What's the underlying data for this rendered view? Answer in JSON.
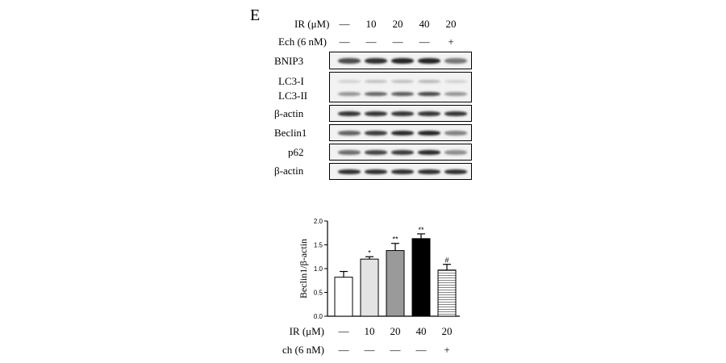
{
  "panel_label": "E",
  "conditions": [
    {
      "name": "IR (μM)",
      "values": [
        "—",
        "10",
        "20",
        "40",
        "20"
      ]
    },
    {
      "name": "Ech (6 nM)",
      "values": [
        "—",
        "—",
        "—",
        "—",
        "+"
      ]
    }
  ],
  "blots": [
    {
      "labels": [
        "BNIP3"
      ],
      "intensity": [
        0.75,
        0.88,
        0.92,
        0.92,
        0.55
      ]
    },
    {
      "labels": [
        "LC3-I",
        "LC3-II"
      ],
      "intensity": [
        0.45,
        0.7,
        0.75,
        0.85,
        0.45
      ]
    },
    {
      "labels": [
        "β-actin"
      ],
      "intensity": [
        0.85,
        0.85,
        0.85,
        0.85,
        0.85
      ]
    },
    {
      "labels": [
        "Beclin1"
      ],
      "intensity": [
        0.65,
        0.82,
        0.9,
        0.92,
        0.5
      ]
    },
    {
      "labels": [
        "p62"
      ],
      "intensity": [
        0.6,
        0.78,
        0.82,
        0.9,
        0.45
      ]
    },
    {
      "labels": [
        "β-actin"
      ],
      "intensity": [
        0.88,
        0.88,
        0.88,
        0.88,
        0.88
      ]
    }
  ],
  "chart_data": {
    "type": "bar",
    "ylabel": "Beclin1/β-actin",
    "ylim": [
      0,
      2.0
    ],
    "yticks": [
      "0.0",
      "0.5",
      "1.0",
      "1.5",
      "2.0"
    ],
    "categories": [
      "1",
      "2",
      "3",
      "4",
      "5"
    ],
    "values": [
      0.82,
      1.2,
      1.38,
      1.63,
      0.97
    ],
    "errors": [
      0.12,
      0.05,
      0.15,
      0.1,
      0.12
    ],
    "annotations": [
      "",
      "*",
      "**",
      "**",
      "#"
    ],
    "fills": [
      "#ffffff",
      "#e3e3e3",
      "#9a9a9a",
      "#000000",
      "stripes"
    ],
    "x_conditions": [
      {
        "name": "IR (μM)",
        "values": [
          "—",
          "10",
          "20",
          "40",
          "20"
        ]
      },
      {
        "name": "Ech (6 nM)",
        "values": [
          "—",
          "—",
          "—",
          "—",
          "+"
        ]
      }
    ]
  }
}
